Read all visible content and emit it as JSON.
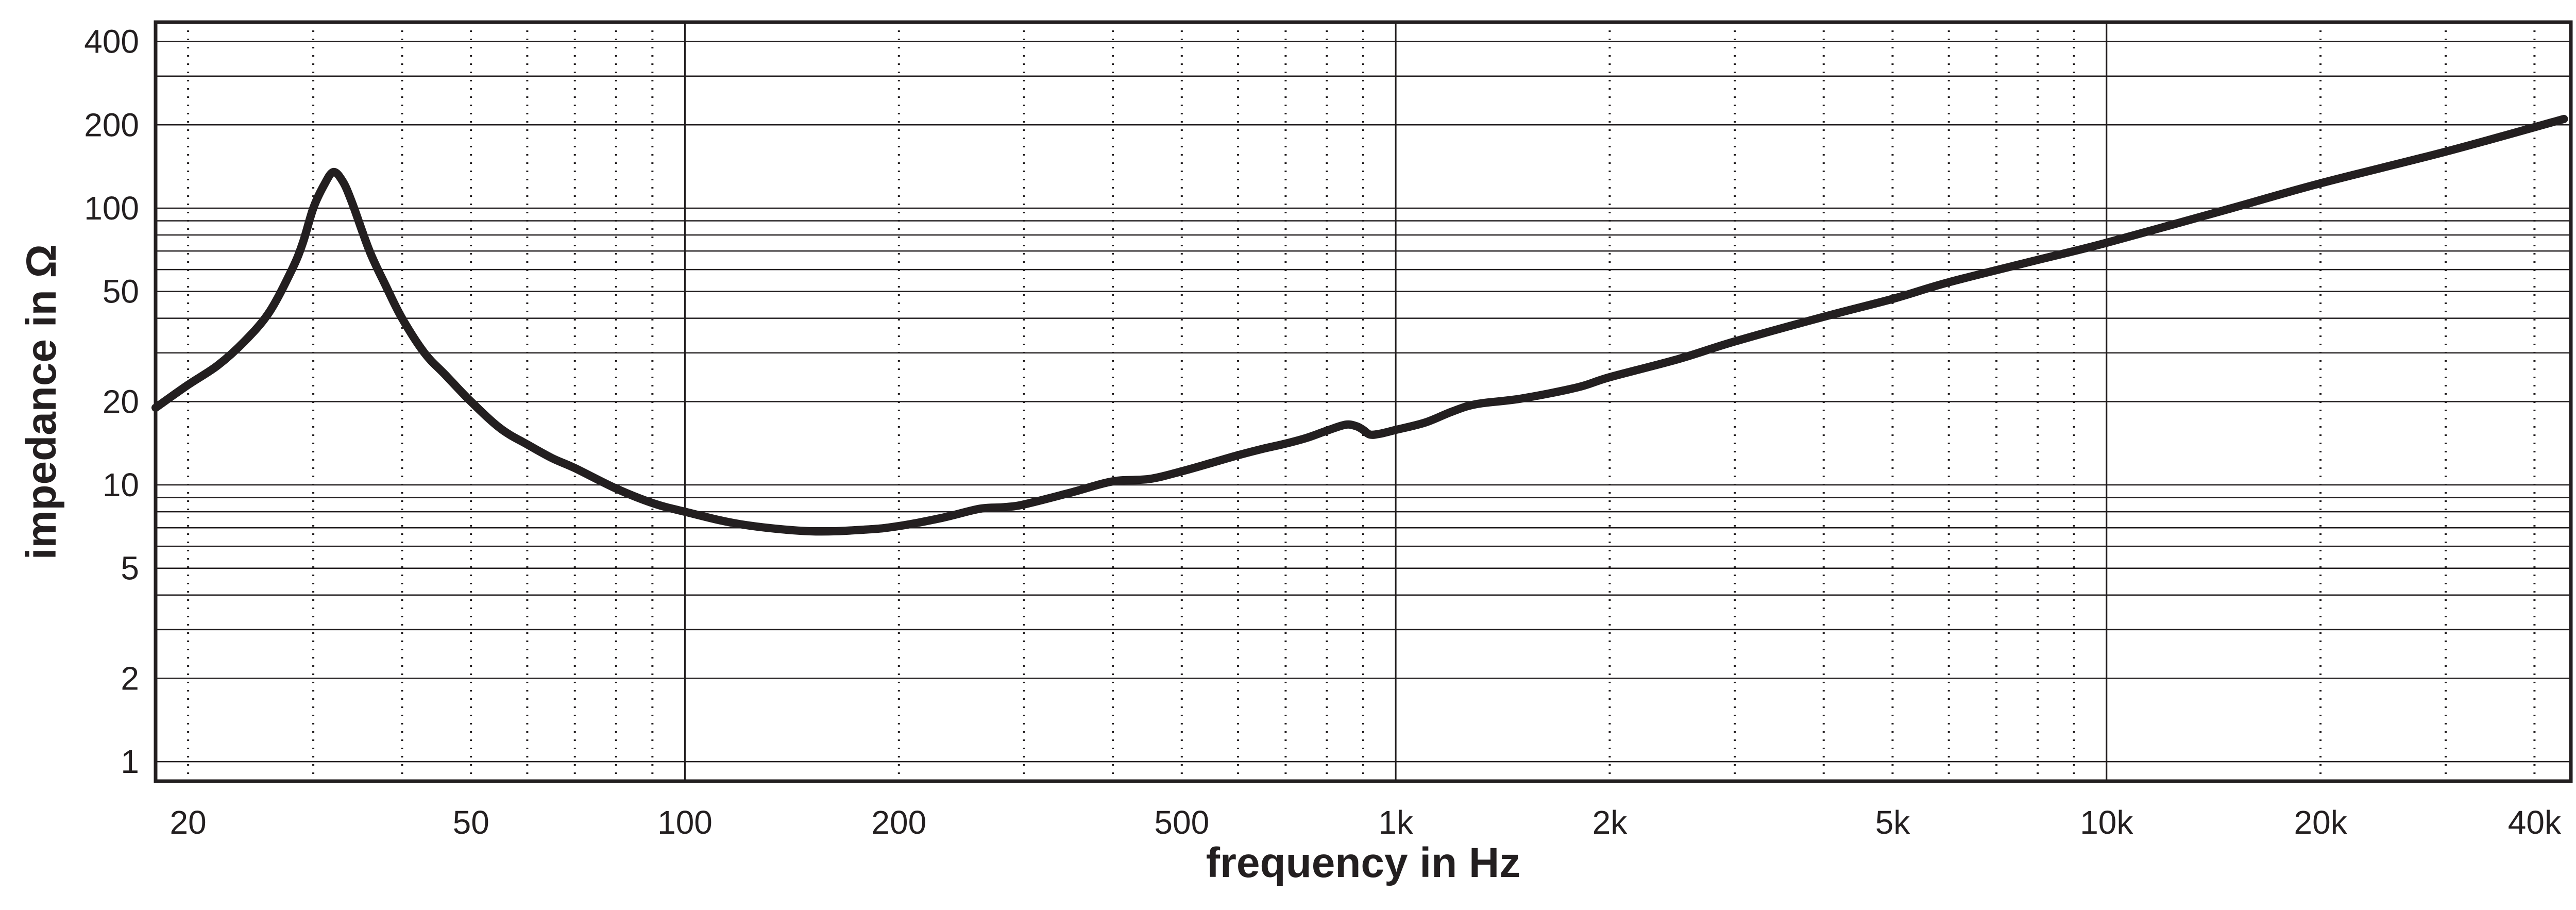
{
  "chart_data": {
    "type": "line",
    "title": "",
    "xlabel": "frequency in Hz",
    "ylabel": "impedance in Ω",
    "x_scale": "log",
    "y_scale": "log",
    "xlim": [
      18,
      45000
    ],
    "ylim": [
      0.85,
      470
    ],
    "grid": true,
    "line_color": "#231f20",
    "x_ticks": [
      {
        "value": 20,
        "label": "20"
      },
      {
        "value": 50,
        "label": "50"
      },
      {
        "value": 100,
        "label": "100"
      },
      {
        "value": 200,
        "label": "200"
      },
      {
        "value": 500,
        "label": "500"
      },
      {
        "value": 1000,
        "label": "1k"
      },
      {
        "value": 2000,
        "label": "2k"
      },
      {
        "value": 5000,
        "label": "5k"
      },
      {
        "value": 10000,
        "label": "10k"
      },
      {
        "value": 20000,
        "label": "20k"
      },
      {
        "value": 40000,
        "label": "40k"
      }
    ],
    "y_ticks": [
      {
        "value": 1,
        "label": "1"
      },
      {
        "value": 2,
        "label": "2"
      },
      {
        "value": 5,
        "label": "5"
      },
      {
        "value": 10,
        "label": "10"
      },
      {
        "value": 20,
        "label": "20"
      },
      {
        "value": 50,
        "label": "50"
      },
      {
        "value": 100,
        "label": "100"
      },
      {
        "value": 200,
        "label": "200"
      },
      {
        "value": 400,
        "label": "400"
      }
    ],
    "series": [
      {
        "x": [
          18,
          20,
          22,
          24,
          26,
          28,
          29,
          30,
          31,
          32,
          33,
          34,
          36,
          38,
          40,
          43,
          46,
          50,
          55,
          60,
          65,
          70,
          80,
          90,
          100,
          120,
          150,
          180,
          200,
          230,
          260,
          280,
          300,
          350,
          400,
          450,
          500,
          550,
          600,
          650,
          700,
          750,
          800,
          850,
          880,
          900,
          920,
          950,
          1000,
          1100,
          1200,
          1300,
          1500,
          1800,
          2000,
          2500,
          3000,
          4000,
          5000,
          6000,
          8000,
          10000,
          15000,
          20000,
          30000,
          44000
        ],
        "y": [
          19,
          23,
          27,
          33,
          42,
          60,
          75,
          100,
          120,
          135,
          125,
          105,
          70,
          52,
          40,
          30,
          25,
          20,
          16,
          14,
          12.5,
          11.5,
          9.7,
          8.6,
          8,
          7.2,
          6.8,
          6.9,
          7.1,
          7.6,
          8.2,
          8.3,
          8.5,
          9.4,
          10.3,
          10.5,
          11.2,
          12,
          12.8,
          13.5,
          14.1,
          14.8,
          15.7,
          16.5,
          16.3,
          15.8,
          15.2,
          15.3,
          15.8,
          16.8,
          18.4,
          19.6,
          20.5,
          22.5,
          24.5,
          28.5,
          33,
          40.5,
          47,
          54,
          65,
          75,
          100,
          123,
          160,
          210
        ]
      }
    ]
  }
}
